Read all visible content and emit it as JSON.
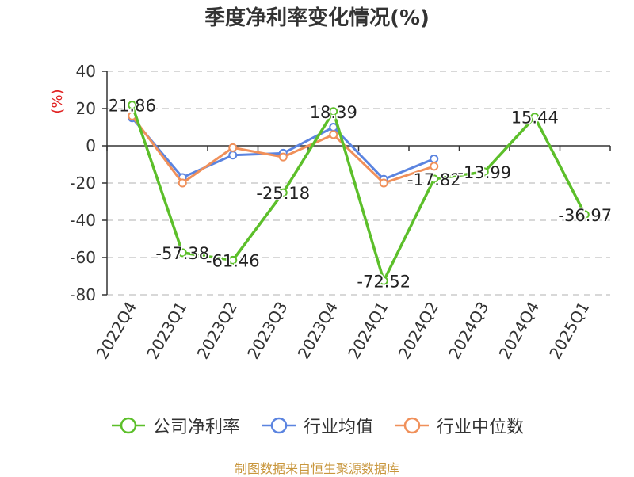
{
  "chart_data": {
    "type": "line",
    "title": "季度净利率变化情况(%)",
    "ylabel": "(%)",
    "xlabel": "",
    "ylim": [
      -80,
      40
    ],
    "yticks": [
      40,
      20,
      0,
      -20,
      -40,
      -60,
      -80
    ],
    "grid": true,
    "legend_position": "bottom",
    "categories": [
      "2022Q4",
      "2023Q1",
      "2023Q2",
      "2023Q3",
      "2023Q4",
      "2024Q1",
      "2024Q2",
      "2024Q3",
      "2024Q4",
      "2025Q1"
    ],
    "series": [
      {
        "name": "公司净利率",
        "color": "#5cbf2a",
        "values": [
          21.86,
          -57.38,
          -61.46,
          -25.18,
          18.39,
          -72.52,
          -17.82,
          -13.99,
          15.44,
          -36.97
        ],
        "labels": [
          "21.86",
          "-57.38",
          "-61.46",
          "-25.18",
          "18.39",
          "-72.52",
          "-17.82",
          "-13.99",
          "15.44",
          "-36.97"
        ]
      },
      {
        "name": "行业均值",
        "color": "#5b84e0",
        "values": [
          15,
          -17,
          -5,
          -4,
          10,
          -18,
          -7,
          null,
          null,
          null
        ]
      },
      {
        "name": "行业中位数",
        "color": "#f0905a",
        "values": [
          16,
          -20,
          -1,
          -6,
          6,
          -20,
          -11,
          null,
          null,
          null
        ]
      }
    ]
  },
  "source": "制图数据来自恒生聚源数据库"
}
